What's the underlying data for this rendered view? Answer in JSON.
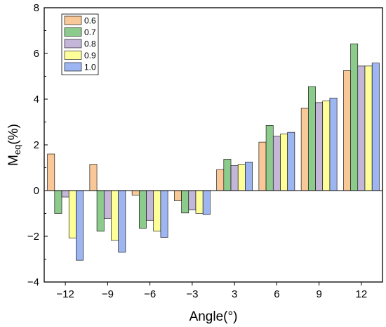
{
  "chart_data": {
    "type": "bar",
    "categories": [
      "-12",
      "-9",
      "-6",
      "-3",
      "3",
      "6",
      "9",
      "12"
    ],
    "series": [
      {
        "name": "0.6",
        "color": "#F9C898",
        "values": [
          1.6,
          1.15,
          -0.2,
          -0.45,
          0.92,
          2.12,
          3.6,
          5.25
        ]
      },
      {
        "name": "0.7",
        "color": "#8CCB8C",
        "values": [
          -1.0,
          -1.78,
          -1.65,
          -0.98,
          1.37,
          2.85,
          4.55,
          6.42
        ]
      },
      {
        "name": "0.8",
        "color": "#C3B6D8",
        "values": [
          -0.28,
          -1.22,
          -1.3,
          -0.85,
          1.1,
          2.38,
          3.85,
          5.45
        ]
      },
      {
        "name": "0.9",
        "color": "#FFFF99",
        "values": [
          -2.08,
          -2.18,
          -1.78,
          -1.0,
          1.15,
          2.48,
          3.92,
          5.45
        ]
      },
      {
        "name": "1.0",
        "color": "#9DB5F0",
        "values": [
          -3.05,
          -2.7,
          -2.05,
          -1.05,
          1.25,
          2.55,
          4.05,
          5.58
        ]
      }
    ],
    "xlabel": "Angle(°)",
    "ylabel_main": "M",
    "ylabel_sub": "eq",
    "ylabel_unit": "(%)",
    "ylim": [
      -4,
      8
    ],
    "yticks": [
      -4,
      -2,
      0,
      2,
      4,
      6,
      8
    ],
    "baseline": 0,
    "grid": false,
    "legend_position": "top-left"
  }
}
